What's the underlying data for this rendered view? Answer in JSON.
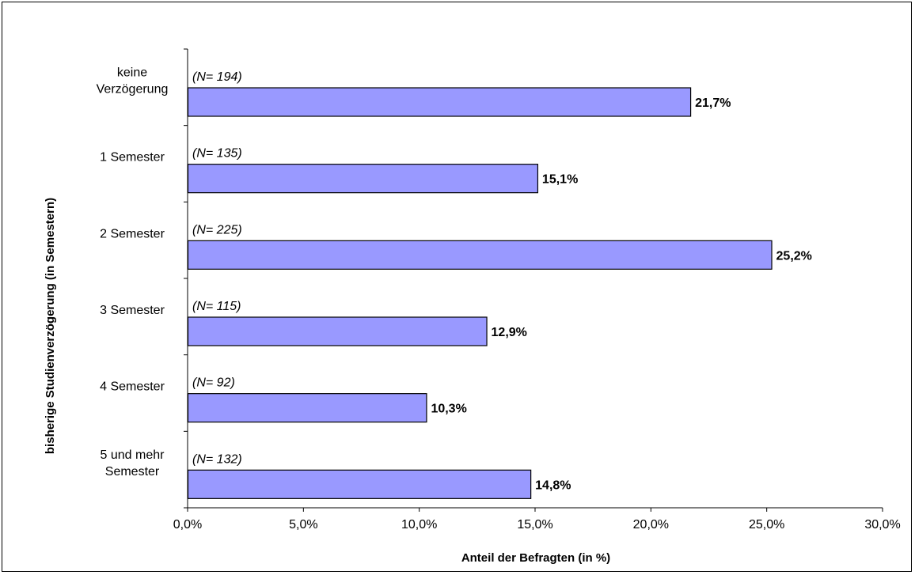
{
  "chart_data": {
    "type": "bar",
    "orientation": "horizontal",
    "categories": [
      [
        "keine",
        "Verzögerung"
      ],
      [
        "1 Semester"
      ],
      [
        "2 Semester"
      ],
      [
        "3 Semester"
      ],
      [
        "4 Semester"
      ],
      [
        "5 und mehr",
        "Semester"
      ]
    ],
    "values": [
      21.7,
      15.1,
      25.2,
      12.9,
      10.3,
      14.8
    ],
    "value_labels": [
      "21,7%",
      "15,1%",
      "25,2%",
      "12,9%",
      "10,3%",
      "14,8%"
    ],
    "n_labels": [
      "(N= 194)",
      "(N= 135)",
      "(N= 225)",
      "(N= 115)",
      "(N= 92)",
      "(N= 132)"
    ],
    "xlim": [
      0,
      30
    ],
    "xticks": [
      0,
      5,
      10,
      15,
      20,
      25,
      30
    ],
    "xtick_labels": [
      "0,0%",
      "5,0%",
      "10,0%",
      "15,0%",
      "20,0%",
      "25,0%",
      "30,0%"
    ],
    "xlabel": "Anteil der Befragten  (in %)",
    "ylabel": "bisherige Studienverzögerung (in Semestern)",
    "grid": false,
    "bar_color": "#9999ff",
    "bar_edge_color": "#000000"
  }
}
